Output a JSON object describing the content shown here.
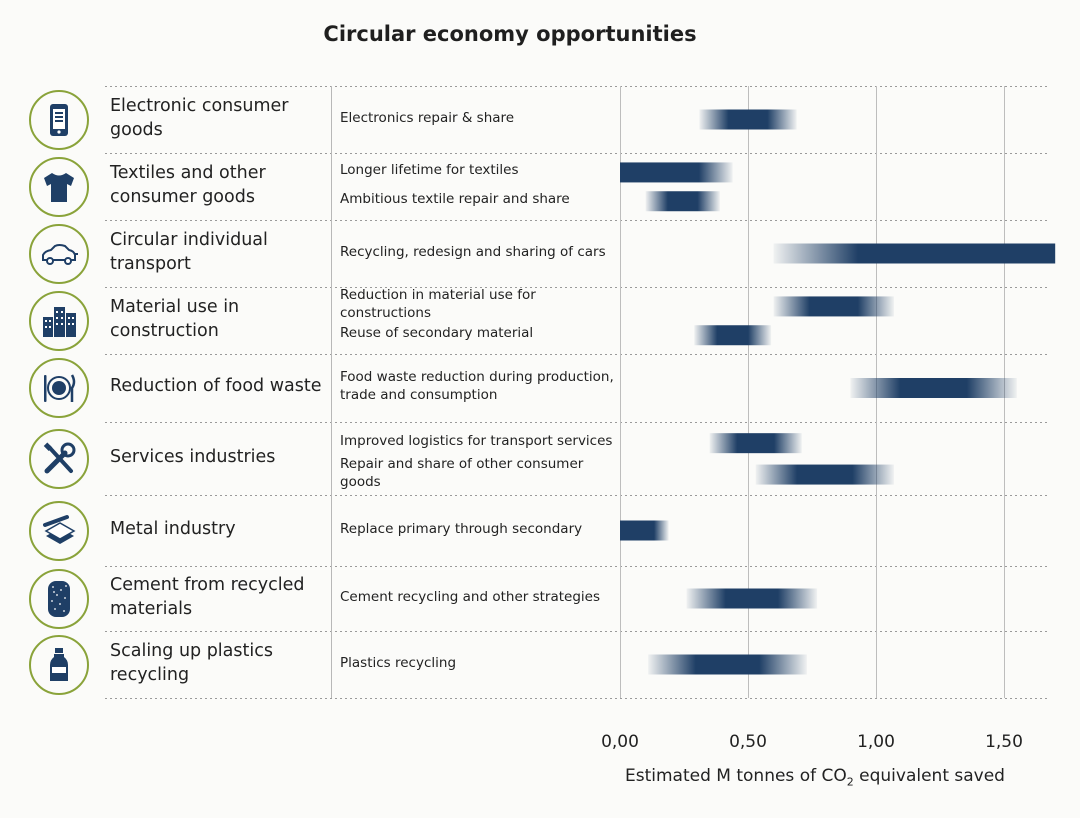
{
  "chart_data": {
    "type": "bar",
    "title": "Circular economy opportunities",
    "xlabel_prefix": "Estimated M tonnes of CO",
    "xlabel_sub": "2",
    "xlabel_suffix": " equivalent saved",
    "xlim": [
      0,
      1.7
    ],
    "xticks": [
      0,
      0.5,
      1.0,
      1.5
    ],
    "xtick_labels": [
      "0,00",
      "0,50",
      "1,00",
      "1,50"
    ],
    "grid": "vertical",
    "bar_color": "#1f3f66",
    "categories": [
      {
        "name": "Electronic consumer goods",
        "icon": "tablet-icon",
        "items": [
          {
            "label": "Electronics repair & share",
            "range": [
              0.31,
              0.69
            ]
          }
        ]
      },
      {
        "name": "Textiles and other consumer goods",
        "icon": "tshirt-icon",
        "items": [
          {
            "label": "Longer lifetime for textiles",
            "range": [
              0.0,
              0.44
            ]
          },
          {
            "label": "Ambitious textile repair and share",
            "range": [
              0.1,
              0.39
            ]
          }
        ]
      },
      {
        "name": "Circular individual transport",
        "icon": "electric-car-icon",
        "items": [
          {
            "label": "Recycling, redesign and sharing of cars",
            "range": [
              0.6,
              1.7
            ]
          }
        ]
      },
      {
        "name": "Material use in construction",
        "icon": "buildings-icon",
        "items": [
          {
            "label": "Reduction in material use for constructions",
            "range": [
              0.6,
              1.07
            ]
          },
          {
            "label": "Reuse of secondary material",
            "range": [
              0.29,
              0.59
            ]
          }
        ]
      },
      {
        "name": "Reduction of food waste",
        "icon": "plate-cutlery-icon",
        "items": [
          {
            "label": "Food waste reduction during production, trade and consumption",
            "range": [
              0.9,
              1.55
            ]
          }
        ]
      },
      {
        "name": "Services industries",
        "icon": "tools-icon",
        "items": [
          {
            "label": "Improved logistics for transport services",
            "range": [
              0.35,
              0.71
            ]
          },
          {
            "label": "Repair and share of other consumer goods",
            "range": [
              0.53,
              1.07
            ]
          }
        ]
      },
      {
        "name": "Metal industry",
        "icon": "metal-bars-icon",
        "items": [
          {
            "label": "Replace primary through secondary",
            "range": [
              0.0,
              0.19
            ]
          }
        ]
      },
      {
        "name": "Cement from recycled materials",
        "icon": "cement-column-icon",
        "items": [
          {
            "label": "Cement recycling and other strategies",
            "range": [
              0.26,
              0.77
            ]
          }
        ]
      },
      {
        "name": "Scaling up plastics recycling",
        "icon": "plastic-bottle-icon",
        "items": [
          {
            "label": "Plastics recycling",
            "range": [
              0.11,
              0.73
            ]
          }
        ]
      }
    ]
  }
}
